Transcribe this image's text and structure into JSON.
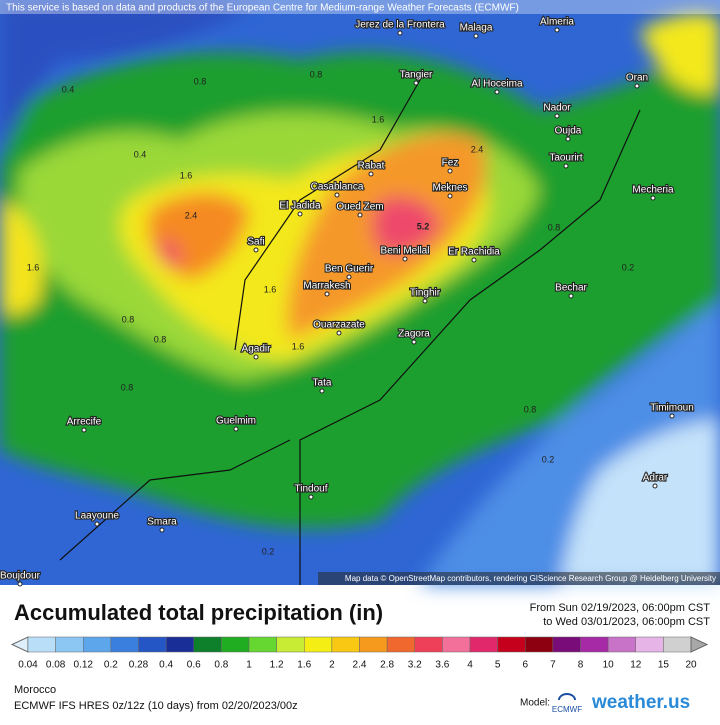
{
  "header": {
    "notice": "This service is based on data and products of the European Centre for Medium-range Weather Forecasts (ECMWF)"
  },
  "map": {
    "attribution": "Map data © OpenStreetMap contributors, rendering GIScience Research Group @ Heidelberg University",
    "places": [
      "Jerez de la Frontera",
      "Malaga",
      "Almeria",
      "Tangier",
      "Al Hoceima",
      "Nador",
      "Oran",
      "Oujda",
      "Taourirt",
      "Mecheria",
      "Rabat",
      "Fez",
      "Casablanca",
      "Meknes",
      "El Jadida",
      "Oued Zem",
      "Safi",
      "Beni Mellal",
      "Er Rachidia",
      "Ben Guerir",
      "Marrakesh",
      "Bechar",
      "Tinghir",
      "Ouarzazate",
      "Agadir",
      "Zagora",
      "Tata",
      "Timimoun",
      "Guelmim",
      "Arrecife",
      "Adrar",
      "Tindouf",
      "Laayoune",
      "Smara",
      "Boujdour"
    ],
    "contour_labels": [
      5.2,
      2.4,
      1.6,
      1.6,
      1.6,
      1.6,
      2.4,
      0.8,
      0.8,
      0.8,
      0.8,
      0.8,
      0.4,
      0.4,
      0.2,
      0.2,
      0.2,
      0.8,
      1.6,
      0.8
    ]
  },
  "legend": {
    "title": "Accumulated total precipitation (in)",
    "from": "From Sun 02/19/2023, 06:00pm CST",
    "to": "to Wed 03/01/2023, 06:00pm CST",
    "labels": [
      0.04,
      0.08,
      0.12,
      0.2,
      0.28,
      0.4,
      0.6,
      0.8,
      1,
      1.2,
      1.6,
      2,
      2.4,
      2.8,
      3.2,
      3.6,
      4,
      5,
      6,
      7,
      8,
      10,
      12,
      15,
      20
    ],
    "colors": [
      "#dfeefb",
      "#b9def8",
      "#8cc6f3",
      "#5ea6ec",
      "#3b7fde",
      "#2456c6",
      "#1a2e98",
      "#0e7f2a",
      "#20ad22",
      "#66d630",
      "#c8ec33",
      "#f5ee14",
      "#f8c812",
      "#f69a1e",
      "#f0682e",
      "#ee4058",
      "#f2709a",
      "#e0286a",
      "#c4001c",
      "#8c0010",
      "#7a0c7a",
      "#a62aa6",
      "#c872c8",
      "#e6b4e6",
      "#d0d0d0",
      "#a8a8a8"
    ]
  },
  "footer": {
    "region": "Morocco",
    "run": "ECMWF IFS HRES 0z/12z (10 days) from  02/20/2023/00z",
    "model_label": "Model:",
    "model_logo": "ECMWF",
    "brand": "weather.us"
  }
}
